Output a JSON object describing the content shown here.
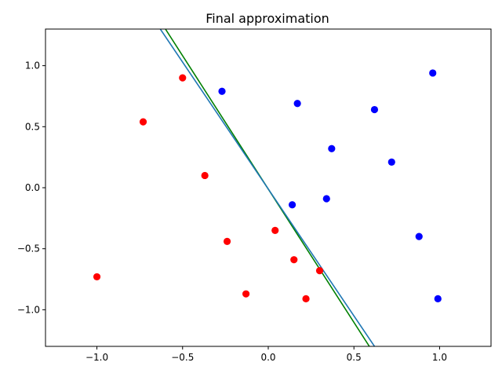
{
  "chart_data": {
    "type": "scatter",
    "title": "Final approximation",
    "xlabel": "",
    "ylabel": "",
    "xlim": [
      -1.3,
      1.3
    ],
    "ylim": [
      -1.3,
      1.3
    ],
    "xticks": [
      -1.0,
      -0.5,
      0.0,
      0.5,
      1.0
    ],
    "yticks": [
      -1.0,
      -0.5,
      0.0,
      0.5,
      1.0
    ],
    "xtick_labels": [
      "−1.0",
      "−0.5",
      "0.0",
      "0.5",
      "1.0"
    ],
    "ytick_labels": [
      "−1.0",
      "−0.5",
      "0.0",
      "0.5",
      "1.0"
    ],
    "grid": false,
    "series": [
      {
        "color": "#ff0000",
        "points": [
          [
            -0.5,
            0.9
          ],
          [
            -0.73,
            0.54
          ],
          [
            -0.37,
            0.1
          ],
          [
            -0.24,
            -0.44
          ],
          [
            0.04,
            -0.35
          ],
          [
            0.15,
            -0.59
          ],
          [
            0.3,
            -0.68
          ],
          [
            -0.13,
            -0.87
          ],
          [
            0.22,
            -0.91
          ],
          [
            -1.0,
            -0.73
          ]
        ]
      },
      {
        "color": "#0000ff",
        "points": [
          [
            -0.27,
            0.79
          ],
          [
            0.17,
            0.69
          ],
          [
            0.96,
            0.94
          ],
          [
            0.62,
            0.64
          ],
          [
            0.37,
            0.32
          ],
          [
            0.72,
            0.21
          ],
          [
            0.34,
            -0.09
          ],
          [
            0.14,
            -0.14
          ],
          [
            0.88,
            -0.4
          ],
          [
            0.99,
            -0.91
          ]
        ]
      }
    ],
    "lines": [
      {
        "color": "#008000",
        "points": [
          [
            -0.6,
            1.3
          ],
          [
            0.59,
            -1.3
          ]
        ]
      },
      {
        "color": "#1f77b4",
        "points": [
          [
            -0.63,
            1.3
          ],
          [
            0.62,
            -1.3
          ]
        ]
      }
    ]
  }
}
